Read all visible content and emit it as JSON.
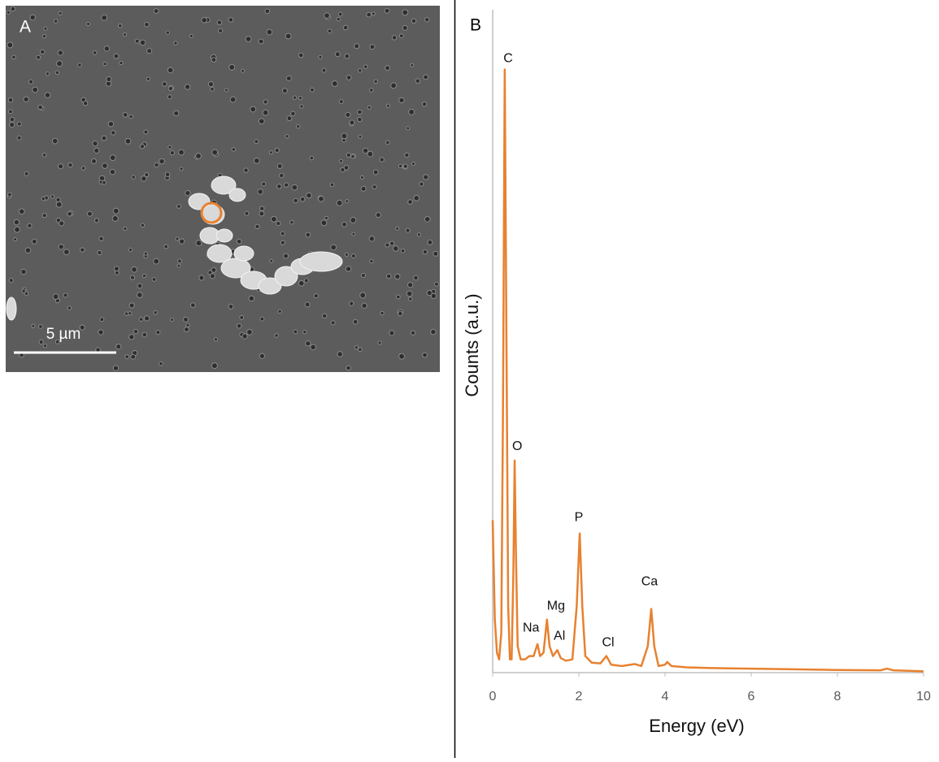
{
  "panel_a": {
    "label": "A",
    "scale_bar": "5 µm"
  },
  "chart_data": {
    "type": "line",
    "panel_label": "B",
    "xlabel": "Energy (eV)",
    "ylabel": "Counts (a.u.)",
    "xlim": [
      0,
      10
    ],
    "xticks": [
      0,
      2,
      4,
      6,
      8,
      10
    ],
    "ylim": [
      0,
      100
    ],
    "series": [
      {
        "color": "#e8812f",
        "x": [
          0,
          0.05,
          0.1,
          0.15,
          0.2,
          0.24,
          0.28,
          0.32,
          0.36,
          0.4,
          0.44,
          0.48,
          0.51,
          0.54,
          0.58,
          0.65,
          0.75,
          0.85,
          0.95,
          1.04,
          1.1,
          1.18,
          1.26,
          1.32,
          1.4,
          1.5,
          1.58,
          1.7,
          1.85,
          1.95,
          2.02,
          2.08,
          2.15,
          2.3,
          2.5,
          2.64,
          2.75,
          3.0,
          3.3,
          3.45,
          3.6,
          3.68,
          3.75,
          3.85,
          4.0,
          4.05,
          4.15,
          4.5,
          5,
          6,
          7,
          8,
          9,
          9.15,
          9.3,
          10
        ],
        "values": [
          23,
          8,
          3,
          2,
          6,
          40,
          91,
          50,
          10,
          2,
          2,
          15,
          32,
          18,
          4,
          2,
          2,
          2.5,
          2.5,
          4.3,
          2.5,
          3,
          8,
          4,
          2.5,
          3.4,
          2.2,
          1.8,
          2,
          10,
          21,
          10,
          2.5,
          1.5,
          1.4,
          2.5,
          1.2,
          1,
          1.3,
          1,
          4,
          9.6,
          4,
          1,
          1.2,
          1.6,
          1,
          0.8,
          0.7,
          0.6,
          0.5,
          0.4,
          0.35,
          0.6,
          0.35,
          0.2
        ]
      }
    ],
    "annotations": [
      {
        "text": "C",
        "x": 0.36,
        "y": 92.6
      },
      {
        "text": "O",
        "x": 0.57,
        "y": 34.1
      },
      {
        "text": "Na",
        "x": 0.89,
        "y": 6.7
      },
      {
        "text": "Mg",
        "x": 1.47,
        "y": 10.0
      },
      {
        "text": "Al",
        "x": 1.55,
        "y": 5.5
      },
      {
        "text": "P",
        "x": 2.0,
        "y": 23.4
      },
      {
        "text": "Cl",
        "x": 2.68,
        "y": 4.5
      },
      {
        "text": "Ca",
        "x": 3.64,
        "y": 13.7
      }
    ]
  }
}
